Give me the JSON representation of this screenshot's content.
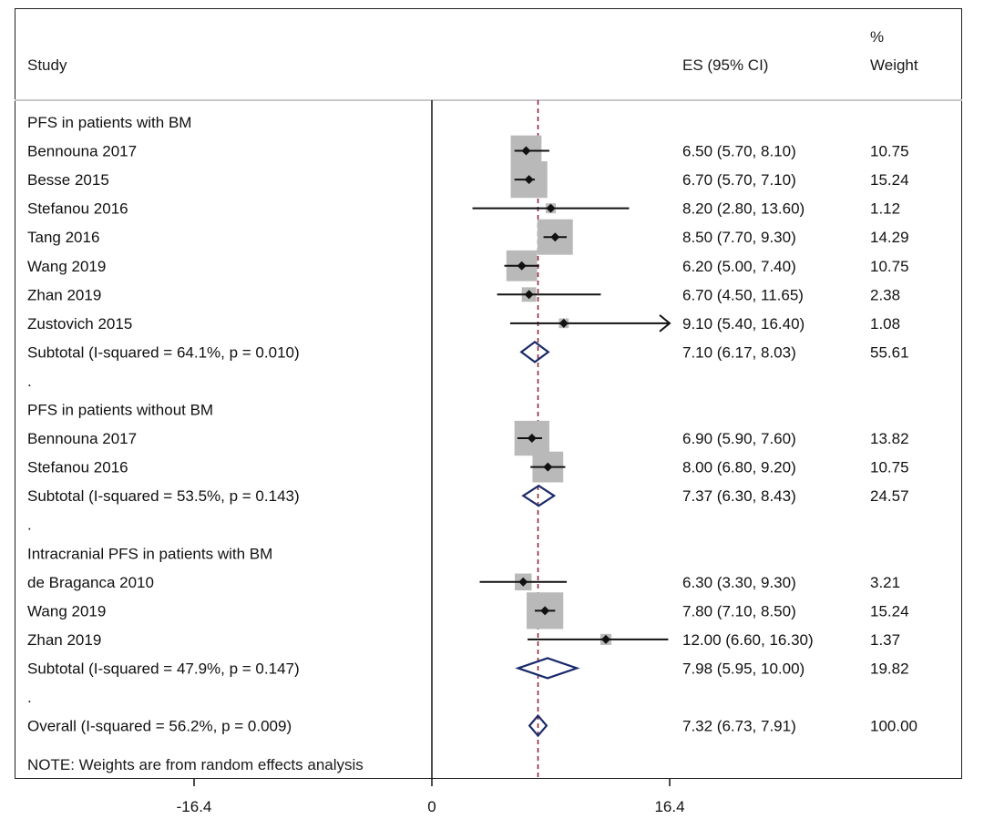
{
  "header": {
    "study": "Study",
    "es": "ES (95% CI)",
    "weight_pct": "%",
    "weight": "Weight"
  },
  "note": "NOTE: Weights are from random effects analysis",
  "colors": {
    "box": "#b9b9b9",
    "diamond": "#1b2a6b",
    "ref_line": "#8b1a2b",
    "ink": "#111111"
  },
  "chart_data": {
    "type": "forest",
    "title": "",
    "xlim": [
      -16.4,
      16.4
    ],
    "x_ticks": [
      "-16.4",
      "0",
      "16.4"
    ],
    "x_tick_values": [
      -16.4,
      0,
      16.4
    ],
    "overall_reference": 7.32,
    "rows": [
      {
        "kind": "group",
        "label": "PFS in patients with BM"
      },
      {
        "kind": "study",
        "label": "Bennouna 2017",
        "es": 6.5,
        "lo": 5.7,
        "hi": 8.1,
        "es_text": "6.50 (5.70, 8.10)",
        "weight": 10.75,
        "weight_text": "10.75"
      },
      {
        "kind": "study",
        "label": "Besse 2015",
        "es": 6.7,
        "lo": 5.7,
        "hi": 7.1,
        "es_text": "6.70 (5.70, 7.10)",
        "weight": 15.24,
        "weight_text": "15.24"
      },
      {
        "kind": "study",
        "label": "Stefanou 2016",
        "es": 8.2,
        "lo": 2.8,
        "hi": 13.6,
        "es_text": "8.20 (2.80, 13.60)",
        "weight": 1.12,
        "weight_text": "1.12"
      },
      {
        "kind": "study",
        "label": "Tang 2016",
        "es": 8.5,
        "lo": 7.7,
        "hi": 9.3,
        "es_text": "8.50 (7.70, 9.30)",
        "weight": 14.29,
        "weight_text": "14.29"
      },
      {
        "kind": "study",
        "label": "Wang 2019",
        "es": 6.2,
        "lo": 5.0,
        "hi": 7.4,
        "es_text": "6.20 (5.00, 7.40)",
        "weight": 10.75,
        "weight_text": "10.75"
      },
      {
        "kind": "study",
        "label": "Zhan 2019",
        "es": 6.7,
        "lo": 4.5,
        "hi": 11.65,
        "es_text": "6.70 (4.50, 11.65)",
        "weight": 2.38,
        "weight_text": "2.38"
      },
      {
        "kind": "study",
        "label": "Zustovich 2015",
        "es": 9.1,
        "lo": 5.4,
        "hi": 16.4,
        "es_text": "9.10 (5.40, 16.40)",
        "weight": 1.08,
        "weight_text": "1.08",
        "arrow": true
      },
      {
        "kind": "subtotal",
        "label": "Subtotal  (I-squared = 64.1%, p = 0.010)",
        "es": 7.1,
        "lo": 6.17,
        "hi": 8.03,
        "es_text": "7.10 (6.17, 8.03)",
        "weight_text": "55.61"
      },
      {
        "kind": "dot",
        "label": "."
      },
      {
        "kind": "group",
        "label": "PFS in patients without BM"
      },
      {
        "kind": "study",
        "label": "Bennouna 2017",
        "es": 6.9,
        "lo": 5.9,
        "hi": 7.6,
        "es_text": "6.90 (5.90, 7.60)",
        "weight": 13.82,
        "weight_text": "13.82"
      },
      {
        "kind": "study",
        "label": "Stefanou 2016",
        "es": 8.0,
        "lo": 6.8,
        "hi": 9.2,
        "es_text": "8.00 (6.80, 9.20)",
        "weight": 10.75,
        "weight_text": "10.75"
      },
      {
        "kind": "subtotal",
        "label": "Subtotal  (I-squared = 53.5%, p = 0.143)",
        "es": 7.37,
        "lo": 6.3,
        "hi": 8.43,
        "es_text": "7.37 (6.30, 8.43)",
        "weight_text": "24.57"
      },
      {
        "kind": "dot",
        "label": "."
      },
      {
        "kind": "group",
        "label": "Intracranial PFS in patients with BM"
      },
      {
        "kind": "study",
        "label": "de Braganca 2010",
        "es": 6.3,
        "lo": 3.3,
        "hi": 9.3,
        "es_text": "6.30 (3.30, 9.30)",
        "weight": 3.21,
        "weight_text": "3.21"
      },
      {
        "kind": "study",
        "label": "Wang 2019",
        "es": 7.8,
        "lo": 7.1,
        "hi": 8.5,
        "es_text": "7.80 (7.10, 8.50)",
        "weight": 15.24,
        "weight_text": "15.24"
      },
      {
        "kind": "study",
        "label": "Zhan 2019",
        "es": 12.0,
        "lo": 6.6,
        "hi": 16.3,
        "es_text": "12.00 (6.60, 16.30)",
        "weight": 1.37,
        "weight_text": "1.37"
      },
      {
        "kind": "subtotal",
        "label": "Subtotal  (I-squared = 47.9%, p = 0.147)",
        "es": 7.98,
        "lo": 5.95,
        "hi": 10.0,
        "es_text": "7.98 (5.95, 10.00)",
        "weight_text": "19.82"
      },
      {
        "kind": "dot",
        "label": "."
      },
      {
        "kind": "overall",
        "label": "Overall  (I-squared = 56.2%, p = 0.009)",
        "es": 7.32,
        "lo": 6.73,
        "hi": 7.91,
        "es_text": "7.32 (6.73, 7.91)",
        "weight_text": "100.00"
      }
    ]
  }
}
